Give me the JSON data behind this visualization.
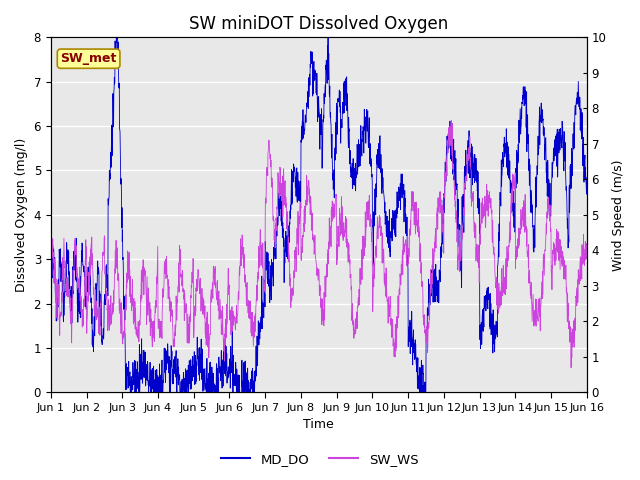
{
  "title": "SW miniDOT Dissolved Oxygen",
  "xlabel": "Time",
  "ylabel_left": "Dissolved Oxygen (mg/l)",
  "ylabel_right": "Wind Speed (m/s)",
  "ylim_left": [
    0.0,
    8.0
  ],
  "ylim_right": [
    0.0,
    10.0
  ],
  "yticks_left": [
    0.0,
    1.0,
    2.0,
    3.0,
    4.0,
    5.0,
    6.0,
    7.0,
    8.0
  ],
  "yticks_right": [
    0.0,
    1.0,
    2.0,
    3.0,
    4.0,
    5.0,
    6.0,
    7.0,
    8.0,
    9.0,
    10.0
  ],
  "xtick_labels": [
    "Jun 1",
    "Jun 2",
    "Jun 3",
    "Jun 4",
    "Jun 5",
    "Jun 6",
    "Jun 7",
    "Jun 8",
    "Jun 9",
    "Jun 10",
    "Jun 11",
    "Jun 12",
    "Jun 13",
    "Jun 14",
    "Jun 15",
    "Jun 16"
  ],
  "color_do": "#0000cc",
  "color_ws": "#cc44dd",
  "legend_entries": [
    "MD_DO",
    "SW_WS"
  ],
  "annotation_text": "SW_met",
  "annotation_color": "#880000",
  "annotation_bg": "#ffff99",
  "annotation_border": "#aa8800",
  "background_color": "#e8e8e8",
  "title_fontsize": 12,
  "label_fontsize": 9,
  "tick_fontsize": 8.5
}
